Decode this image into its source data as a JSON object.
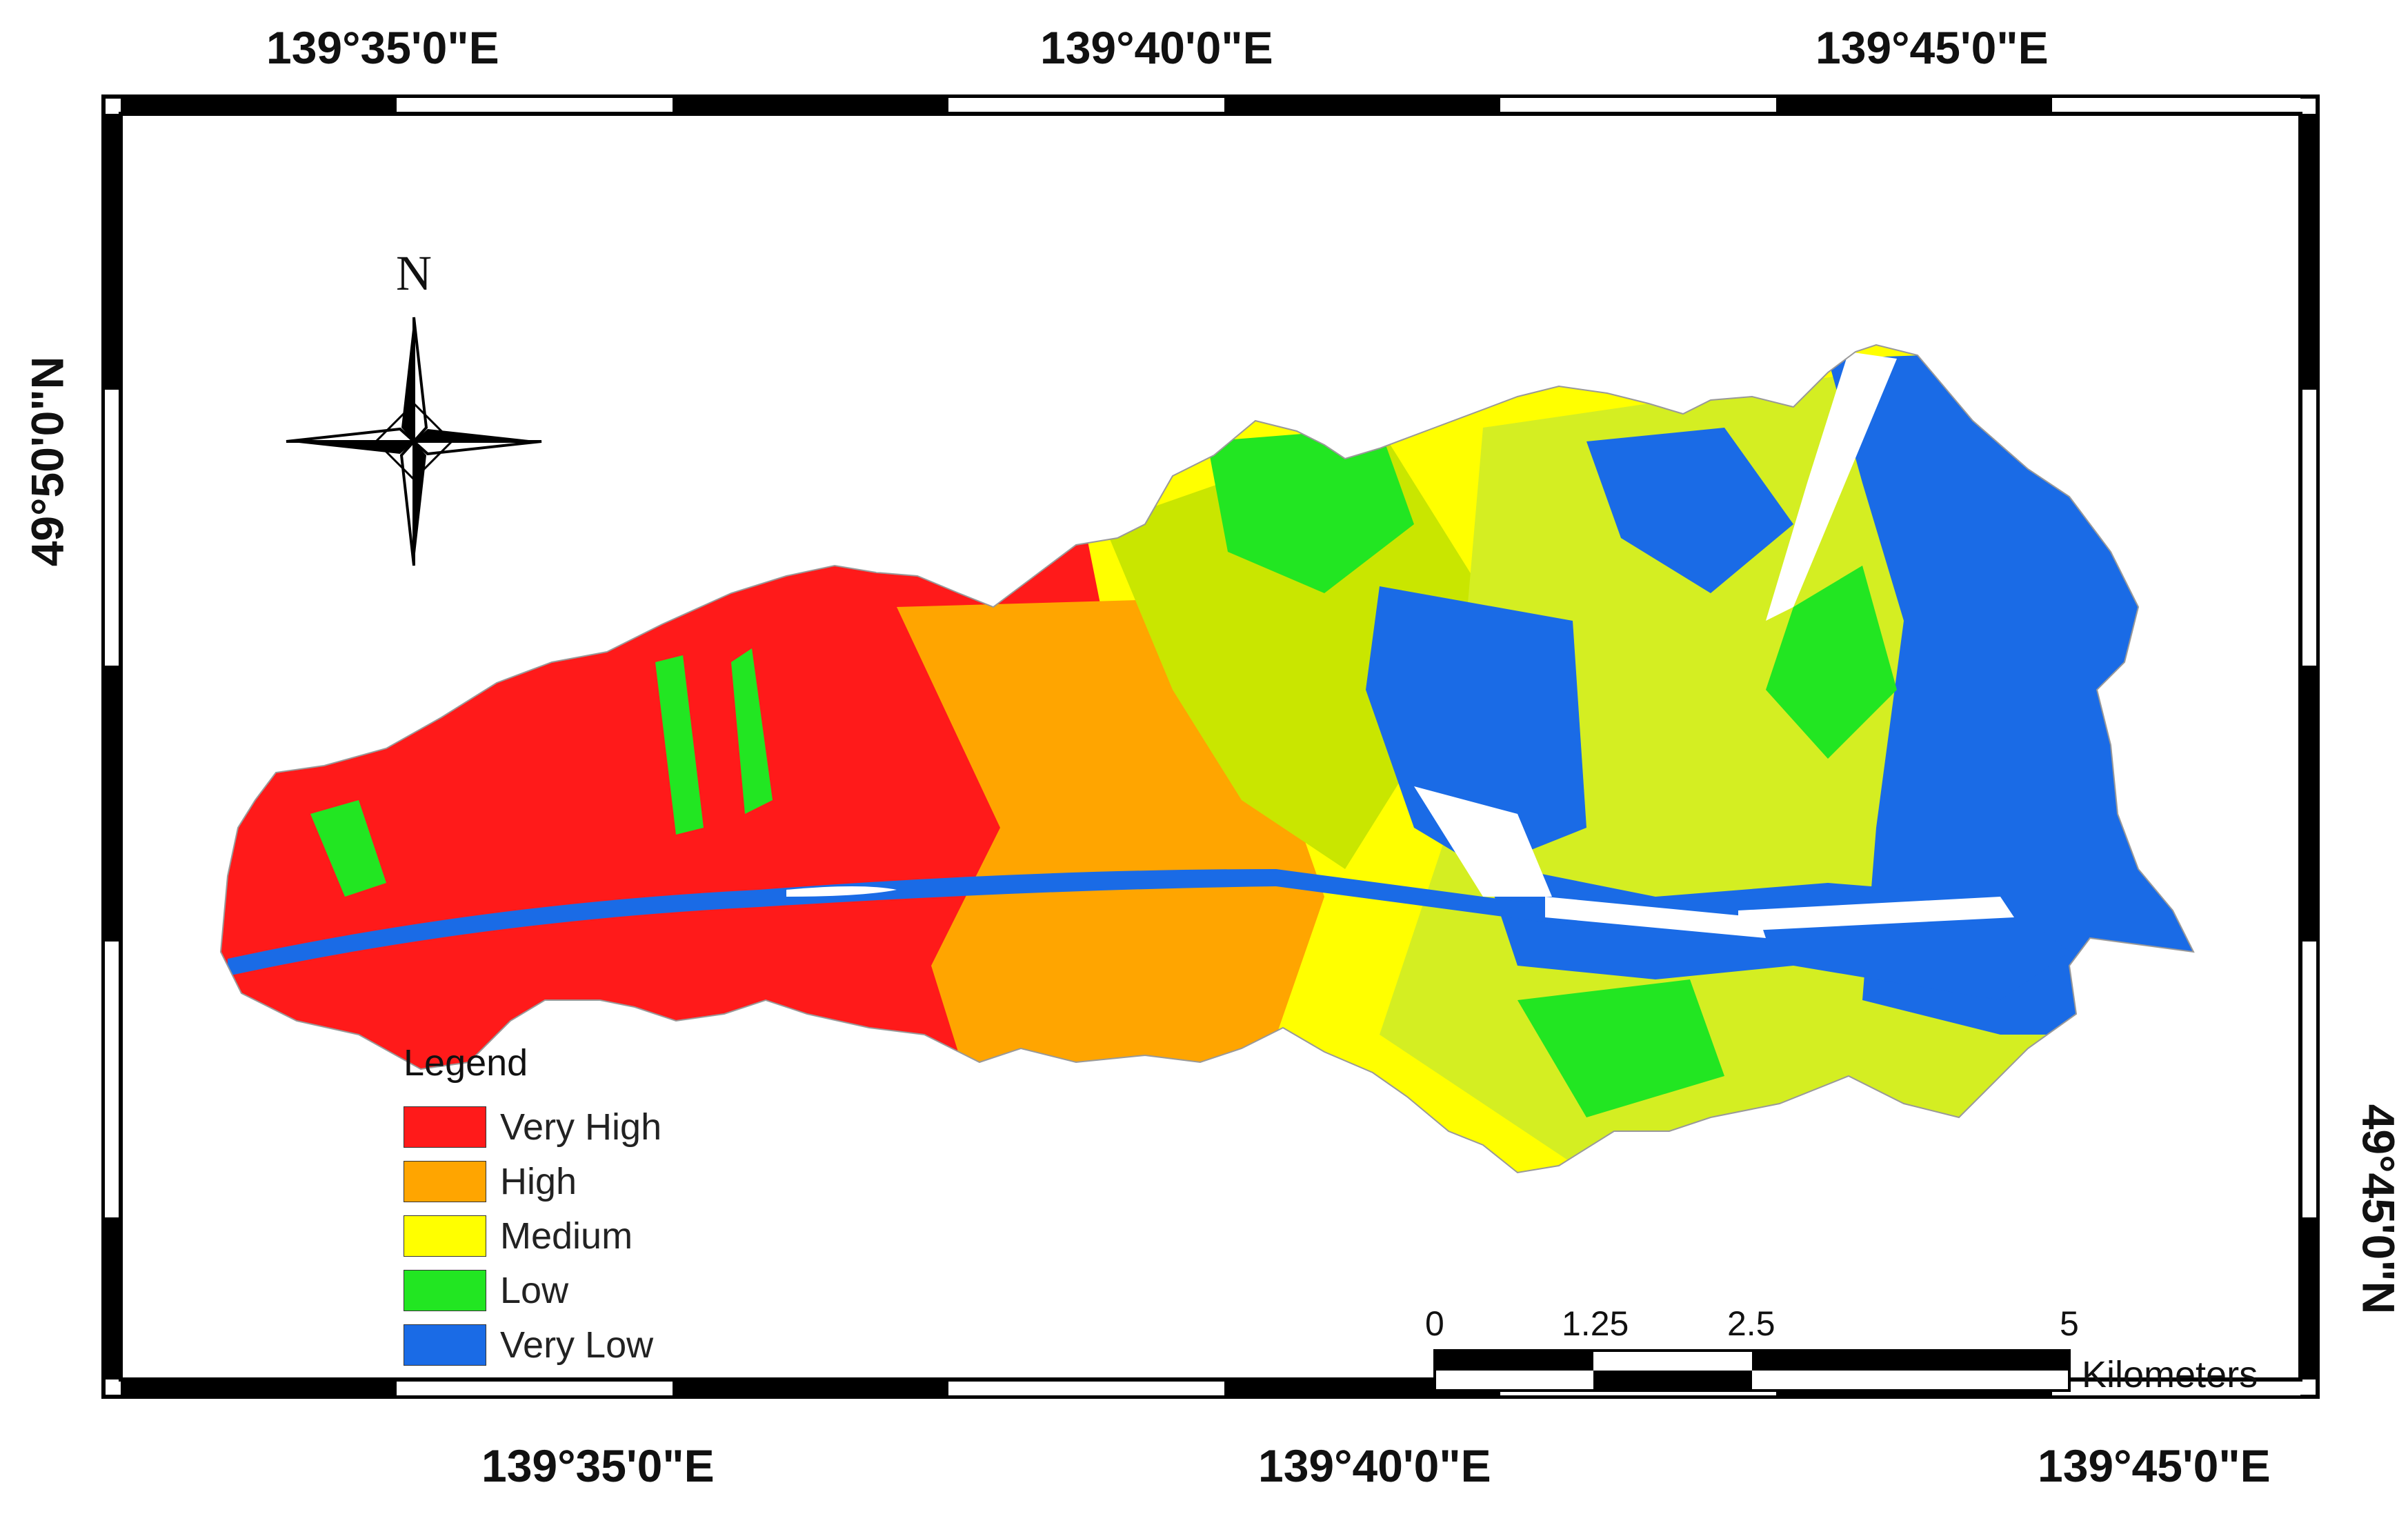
{
  "map": {
    "top_labels": [
      "139°35'0\"E",
      "139°40'0\"E",
      "139°45'0\"E"
    ],
    "bottom_labels": [
      "139°35'0\"E",
      "139°40'0\"E",
      "139°45'0\"E"
    ],
    "left_label": "49°50'0\"N",
    "right_label": "49°45'0\"N",
    "north_label": "N"
  },
  "legend": {
    "title": "Legend",
    "items": [
      {
        "label": "Very High",
        "color": "#ff1a1a"
      },
      {
        "label": "High",
        "color": "#ffa500"
      },
      {
        "label": "Medium",
        "color": "#ffff00"
      },
      {
        "label": "Low",
        "color": "#22e622"
      },
      {
        "label": "Very Low",
        "color": "#1a6be6"
      }
    ]
  },
  "scale_bar": {
    "ticks": [
      "0",
      "1.25",
      "2.5",
      "5"
    ],
    "unit": "Kilometers"
  },
  "colors": {
    "very_high": "#ff1a1a",
    "high": "#ffa500",
    "medium": "#ffff00",
    "low": "#22e622",
    "very_low": "#1a6be6"
  }
}
